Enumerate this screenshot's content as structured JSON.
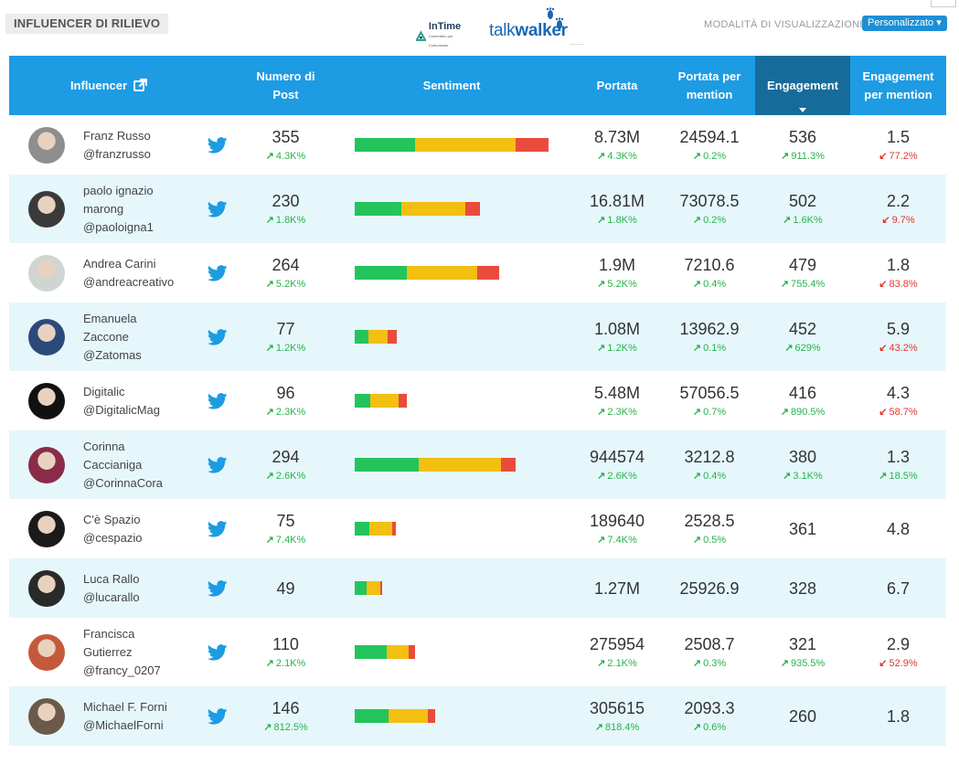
{
  "header": {
    "title": "INFLUENCER DI RILIEVO",
    "logo_intime": "InTime",
    "logo_intime_sub": "Comfortino per Comunicare",
    "logo_talk": "talk",
    "logo_walker": "walker",
    "mode_label": "MODALITÀ DI VISUALIZZAZIONE",
    "mode_button": "Personalizzato"
  },
  "columns": {
    "influencer": "Influencer",
    "posts_line1": "Numero di",
    "posts_line2": "Post",
    "sentiment": "Sentiment",
    "reach": "Portata",
    "reach_per_line1": "Portata per",
    "reach_per_line2": "mention",
    "engagement": "Engagement",
    "eng_per_line1": "Engagement",
    "eng_per_line2": "per mention"
  },
  "colors": {
    "header_bg": "#1d9be3",
    "active_header_bg": "#176b9b",
    "alt_row_bg": "#e6f7fc",
    "positive": "#23c45c",
    "neutral": "#f2bf12",
    "negative": "#e94c3d",
    "trend_up": "#27b24a",
    "trend_down": "#e0382c",
    "twitter": "#1d9be3"
  },
  "rows": [
    {
      "name_lines": [
        "Franz Russo",
        "@franzrusso"
      ],
      "avatar": "#8e8e8e",
      "posts": "355",
      "posts_delta": "4.3K%",
      "posts_dir": "up",
      "sentiment": [
        0.31,
        0.52,
        0.17
      ],
      "sent_frac": 1.0,
      "reach": "8.73M",
      "reach_delta": "4.3K%",
      "reach_dir": "up",
      "rpm": "24594.1",
      "rpm_delta": "0.2%",
      "rpm_dir": "up",
      "eng": "536",
      "eng_delta": "911.3%",
      "eng_dir": "up",
      "epm": "1.5",
      "epm_delta": "77.2%",
      "epm_dir": "down"
    },
    {
      "name_lines": [
        "paolo ignazio",
        "marong",
        "@paoloigna1"
      ],
      "avatar": "#3a3a3a",
      "posts": "230",
      "posts_delta": "1.8K%",
      "posts_dir": "up",
      "sentiment": [
        0.37,
        0.51,
        0.12
      ],
      "sent_frac": 0.646,
      "reach": "16.81M",
      "reach_delta": "1.8K%",
      "reach_dir": "up",
      "rpm": "73078.5",
      "rpm_delta": "0.2%",
      "rpm_dir": "up",
      "eng": "502",
      "eng_delta": "1.6K%",
      "eng_dir": "up",
      "epm": "2.2",
      "epm_delta": "9.7%",
      "epm_dir": "down"
    },
    {
      "name_lines": [
        "Andrea Carini",
        "@andreacreativo"
      ],
      "avatar": "#cfd5d0",
      "posts": "264",
      "posts_delta": "5.2K%",
      "posts_dir": "up",
      "sentiment": [
        0.36,
        0.49,
        0.15
      ],
      "sent_frac": 0.745,
      "reach": "1.9M",
      "reach_delta": "5.2K%",
      "reach_dir": "up",
      "rpm": "7210.6",
      "rpm_delta": "0.4%",
      "rpm_dir": "up",
      "eng": "479",
      "eng_delta": "755.4%",
      "eng_dir": "up",
      "epm": "1.8",
      "epm_delta": "83.8%",
      "epm_dir": "down"
    },
    {
      "name_lines": [
        "Emanuela",
        "Zaccone",
        "@Zatomas"
      ],
      "avatar": "#2b4a7a",
      "posts": "77",
      "posts_delta": "1.2K%",
      "posts_dir": "up",
      "sentiment": [
        0.33,
        0.46,
        0.21
      ],
      "sent_frac": 0.217,
      "reach": "1.08M",
      "reach_delta": "1.2K%",
      "reach_dir": "up",
      "rpm": "13962.9",
      "rpm_delta": "0.1%",
      "rpm_dir": "up",
      "eng": "452",
      "eng_delta": "629%",
      "eng_dir": "up",
      "epm": "5.9",
      "epm_delta": "43.2%",
      "epm_dir": "down"
    },
    {
      "name_lines": [
        "Digitalic",
        "@DigitalicMag"
      ],
      "avatar": "#111111",
      "posts": "96",
      "posts_delta": "2.3K%",
      "posts_dir": "up",
      "sentiment": [
        0.3,
        0.54,
        0.16
      ],
      "sent_frac": 0.27,
      "reach": "5.48M",
      "reach_delta": "2.3K%",
      "reach_dir": "up",
      "rpm": "57056.5",
      "rpm_delta": "0.7%",
      "rpm_dir": "up",
      "eng": "416",
      "eng_delta": "890.5%",
      "eng_dir": "up",
      "epm": "4.3",
      "epm_delta": "58.7%",
      "epm_dir": "down"
    },
    {
      "name_lines": [
        "Corinna",
        "Caccianiga",
        "@CorinnaCora"
      ],
      "avatar": "#8a2b4a",
      "posts": "294",
      "posts_delta": "2.6K%",
      "posts_dir": "up",
      "sentiment": [
        0.4,
        0.51,
        0.09
      ],
      "sent_frac": 0.83,
      "reach": "944574",
      "reach_delta": "2.6K%",
      "reach_dir": "up",
      "rpm": "3212.8",
      "rpm_delta": "0.4%",
      "rpm_dir": "up",
      "eng": "380",
      "eng_delta": "3.1K%",
      "eng_dir": "up",
      "epm": "1.3",
      "epm_delta": "18.5%",
      "epm_dir": "up"
    },
    {
      "name_lines": [
        "C'è Spazio",
        "@cespazio"
      ],
      "avatar": "#1a1a1a",
      "posts": "75",
      "posts_delta": "7.4K%",
      "posts_dir": "up",
      "sentiment": [
        0.36,
        0.56,
        0.08
      ],
      "sent_frac": 0.212,
      "reach": "189640",
      "reach_delta": "7.4K%",
      "reach_dir": "up",
      "rpm": "2528.5",
      "rpm_delta": "0.5%",
      "rpm_dir": "up",
      "eng": "361",
      "eng_delta": "",
      "eng_dir": "up",
      "epm": "4.8",
      "epm_delta": "",
      "epm_dir": "up"
    },
    {
      "name_lines": [
        "Luca Rallo",
        "@lucarallo"
      ],
      "avatar": "#2a2a2a",
      "posts": "49",
      "posts_delta": "",
      "posts_dir": "up",
      "sentiment": [
        0.43,
        0.5,
        0.07
      ],
      "sent_frac": 0.138,
      "reach": "1.27M",
      "reach_delta": "",
      "reach_dir": "up",
      "rpm": "25926.9",
      "rpm_delta": "",
      "rpm_dir": "up",
      "eng": "328",
      "eng_delta": "",
      "eng_dir": "up",
      "epm": "6.7",
      "epm_delta": "",
      "epm_dir": "up"
    },
    {
      "name_lines": [
        "Francisca",
        "Gutierrez",
        "@francy_0207"
      ],
      "avatar": "#c45a3a",
      "posts": "110",
      "posts_delta": "2.1K%",
      "posts_dir": "up",
      "sentiment": [
        0.53,
        0.37,
        0.1
      ],
      "sent_frac": 0.31,
      "reach": "275954",
      "reach_delta": "2.1K%",
      "reach_dir": "up",
      "rpm": "2508.7",
      "rpm_delta": "0.3%",
      "rpm_dir": "up",
      "eng": "321",
      "eng_delta": "935.5%",
      "eng_dir": "up",
      "epm": "2.9",
      "epm_delta": "52.9%",
      "epm_dir": "down"
    },
    {
      "name_lines": [
        "Michael F. Forni",
        "@MichaelForni"
      ],
      "avatar": "#6b5a4a",
      "posts": "146",
      "posts_delta": "812.5%",
      "posts_dir": "up",
      "sentiment": [
        0.42,
        0.49,
        0.09
      ],
      "sent_frac": 0.41,
      "reach": "305615",
      "reach_delta": "818.4%",
      "reach_dir": "up",
      "rpm": "2093.3",
      "rpm_delta": "0.6%",
      "rpm_dir": "up",
      "eng": "260",
      "eng_delta": "",
      "eng_dir": "up",
      "epm": "1.8",
      "epm_delta": "",
      "epm_dir": "up"
    }
  ]
}
